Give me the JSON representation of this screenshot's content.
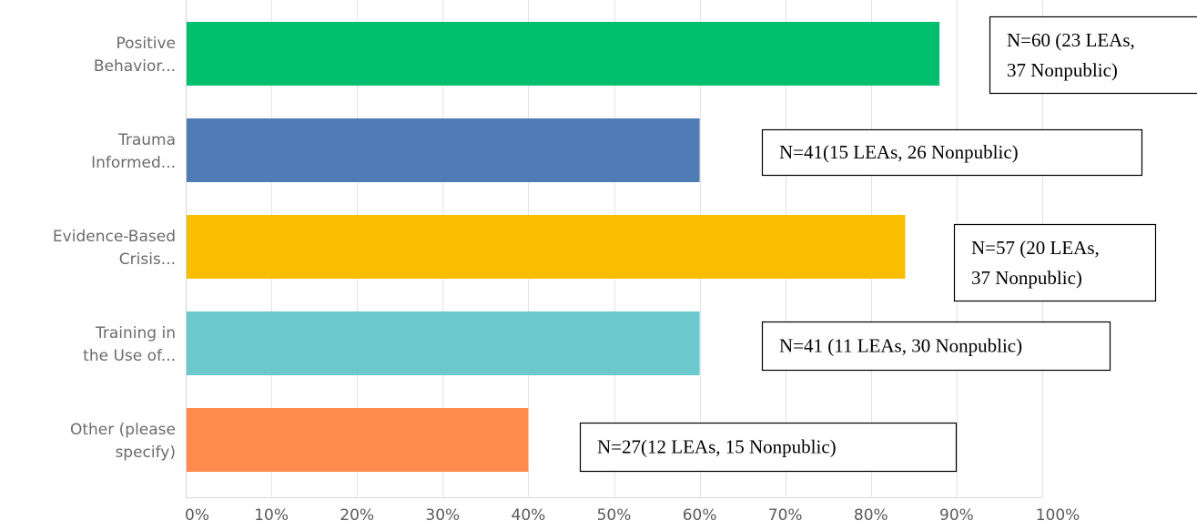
{
  "chart_data": {
    "type": "bar",
    "orientation": "horizontal",
    "categories": [
      [
        "Positive",
        "Behavior..."
      ],
      [
        "Trauma",
        "Informed..."
      ],
      [
        "Evidence-Based",
        "Crisis..."
      ],
      [
        "Training in",
        "the Use of..."
      ],
      [
        "Other (please",
        "specify)"
      ]
    ],
    "values": [
      88,
      60,
      84,
      60,
      40
    ],
    "colors": [
      "#00bf6f",
      "#507cb6",
      "#f9be00",
      "#6bc8cd",
      "#ff8b4f"
    ],
    "annotations": [
      [
        "N=60 (23 LEAs,",
        "37 Nonpublic)"
      ],
      [
        "N=41(15 LEAs, 26 Nonpublic)"
      ],
      [
        "N=57 (20 LEAs,",
        "37 Nonpublic)"
      ],
      [
        "N=41 (11 LEAs, 30 Nonpublic)"
      ],
      [
        "N=27(12 LEAs, 15 Nonpublic)"
      ]
    ],
    "xlim": [
      0,
      100
    ],
    "xticks": [
      0,
      10,
      20,
      30,
      40,
      50,
      60,
      70,
      80,
      90,
      100
    ],
    "tick_suffix": "%",
    "grid": true,
    "title": "",
    "xlabel": "",
    "ylabel": ""
  }
}
